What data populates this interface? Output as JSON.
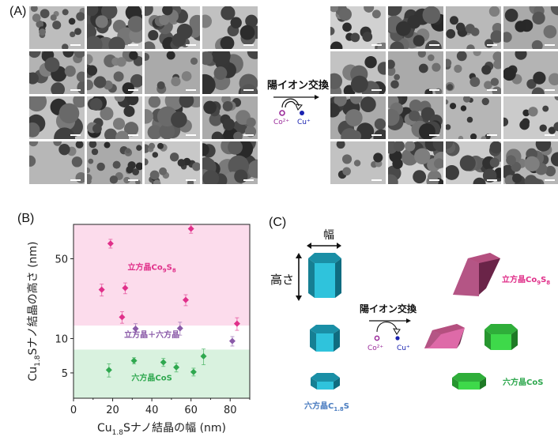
{
  "panels": {
    "a": {
      "label": "(A)",
      "exchange_label": "陽イオン交換",
      "ion_in": "Co²⁺",
      "ion_out": "Cu⁺",
      "micrograph_grid_rows": 4,
      "micrograph_grid_cols": 4
    },
    "b": {
      "label": "(B)"
    },
    "c": {
      "label": "(C)",
      "width_label": "幅",
      "height_label": "高さ",
      "exchange_label": "陽イオン交換",
      "ion_in": "Co²⁺",
      "ion_out": "Cu⁺",
      "start_label": "六方晶C",
      "start_sub": "1.8",
      "start_tail": "S",
      "cubic_label": "立方晶Co",
      "cubic_sub1": "9",
      "cubic_mid": "S",
      "cubic_sub2": "8",
      "hex_label": "六方晶CoS"
    }
  },
  "colors": {
    "cubic": "#e0308a",
    "mixed": "#8a5aa8",
    "hex": "#2fa84f",
    "start": "#4a7cc0",
    "cubic_region": "#fcdcec",
    "hex_region": "#d9f2df",
    "co_ion": "#9a2a9a",
    "cu_ion": "#1a22b0",
    "prism_cyan": "#2fc3dc",
    "prism_pink": "#de6aa8",
    "prism_green": "#3ed94a"
  },
  "chart_data": {
    "type": "scatter",
    "xlabel": "Cu1.8Sナノ結晶の幅 (nm)",
    "ylabel": "Cu1.8Sナノ結晶の高さ (nm)",
    "xlim": [
      0,
      90
    ],
    "ylim": [
      3,
      100
    ],
    "yscale": "log",
    "xticks": [
      0,
      20,
      40,
      60,
      80
    ],
    "yticks": [
      5,
      10,
      50
    ],
    "grid": false,
    "regions": [
      {
        "name": "立方晶Co9S8",
        "label_main": "立方晶Co",
        "sub1": "9",
        "mid": "S",
        "sub2": "8",
        "y_from": 13,
        "y_to": 100,
        "color": "#fcdcec"
      },
      {
        "name": "立方晶＋六方晶",
        "label_main": "立方晶＋六方晶",
        "y_from": 8,
        "y_to": 13,
        "color": "#ffffff"
      },
      {
        "name": "六方晶CoS",
        "label_main": "六方晶CoS",
        "y_from": 3,
        "y_to": 8,
        "color": "#d9f2df"
      }
    ],
    "series": [
      {
        "name": "立方晶Co9S8",
        "color": "#e0308a",
        "points": [
          {
            "x": 14.4,
            "y": 26.8,
            "yerr": 3.2
          },
          {
            "x": 18.9,
            "y": 68,
            "yerr": 6
          },
          {
            "x": 26.4,
            "y": 27.7,
            "yerr": 3
          },
          {
            "x": 24.8,
            "y": 15.4,
            "yerr": 1.8
          },
          {
            "x": 60,
            "y": 91.6,
            "yerr": 8
          },
          {
            "x": 57.3,
            "y": 21.8,
            "yerr": 2.4
          },
          {
            "x": 83.5,
            "y": 13.5,
            "yerr": 1.7
          }
        ]
      },
      {
        "name": "立方晶＋六方晶",
        "color": "#8a5aa8",
        "points": [
          {
            "x": 31.7,
            "y": 12.2,
            "yerr": 1.3
          },
          {
            "x": 54.4,
            "y": 12.3,
            "yerr": 1.6
          },
          {
            "x": 81.1,
            "y": 9.5,
            "yerr": 0.9
          }
        ]
      },
      {
        "name": "六方晶CoS",
        "color": "#2fa84f",
        "points": [
          {
            "x": 18.1,
            "y": 5.3,
            "yerr": 0.7
          },
          {
            "x": 30.9,
            "y": 6.4,
            "yerr": 0.4
          },
          {
            "x": 45.9,
            "y": 6.2,
            "yerr": 0.5
          },
          {
            "x": 52.5,
            "y": 5.6,
            "yerr": 0.5
          },
          {
            "x": 61.3,
            "y": 5.1,
            "yerr": 0.4
          },
          {
            "x": 66.4,
            "y": 7.0,
            "yerr": 1.1
          }
        ]
      }
    ],
    "axis_text": {
      "ylabel_a": "Cu",
      "ylabel_sub": "1.8",
      "ylabel_b": "Sナノ結晶の高さ (nm)",
      "xlabel_a": "Cu",
      "xlabel_sub": "1.8",
      "xlabel_b": "Sナノ結晶の幅 (nm)"
    }
  }
}
